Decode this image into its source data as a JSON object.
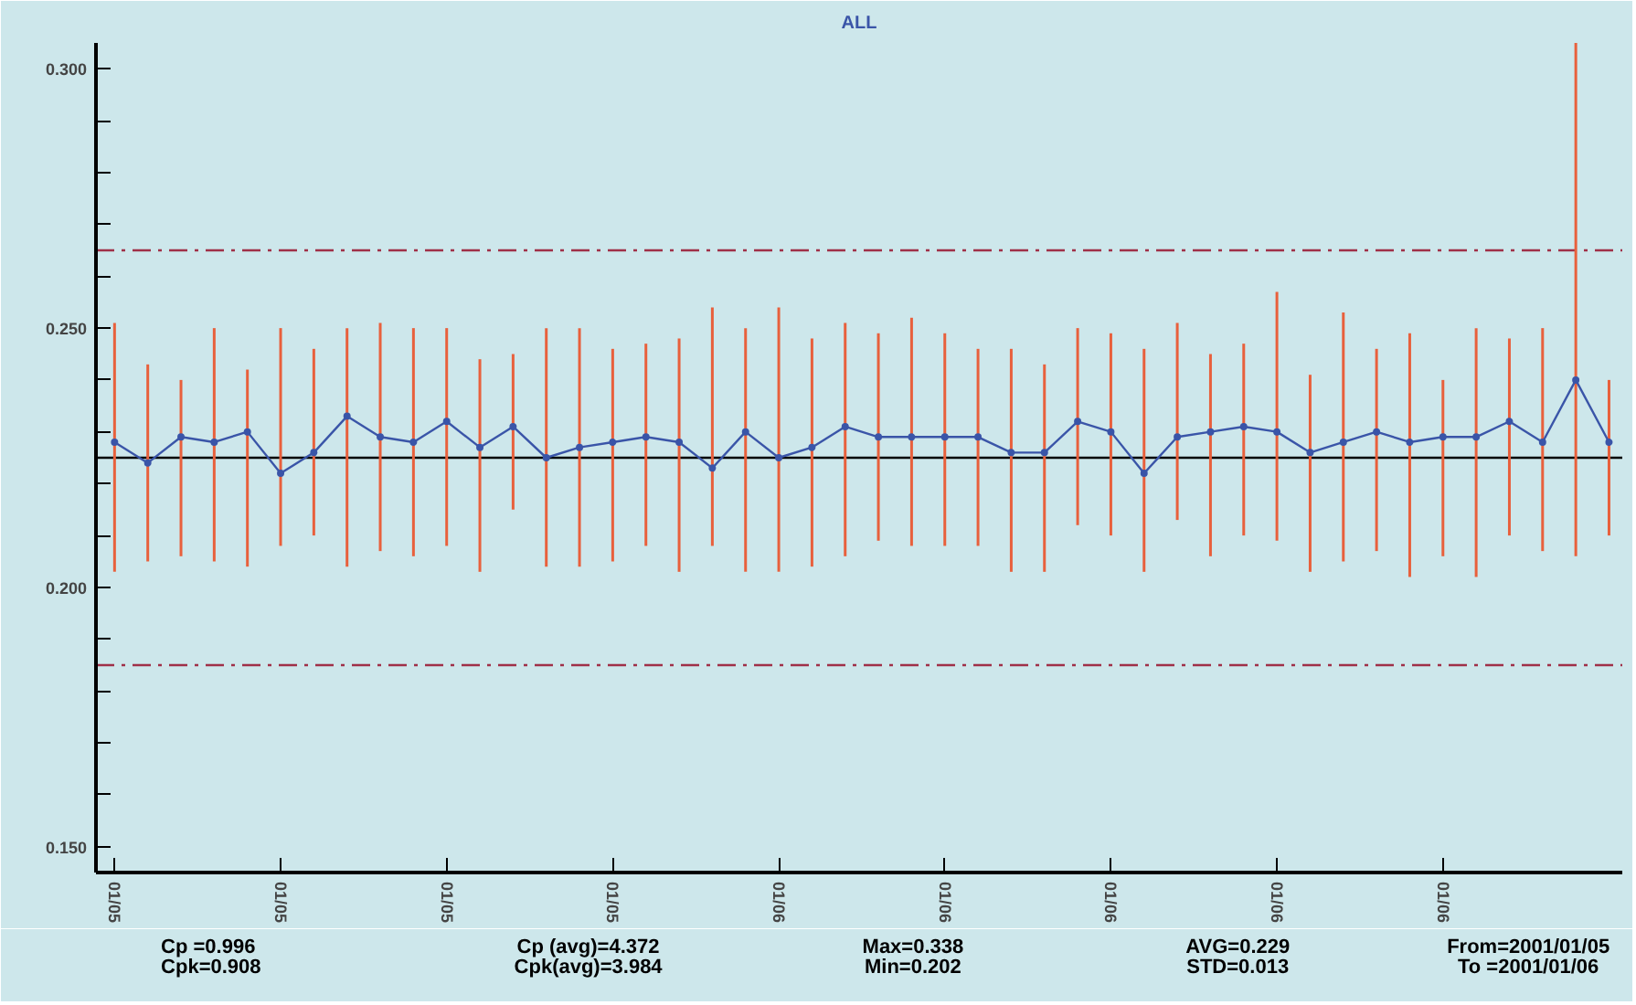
{
  "chart_data": {
    "type": "line",
    "title": "ALL",
    "categories": [
      "01/05",
      null,
      null,
      null,
      null,
      "01/05",
      null,
      null,
      null,
      null,
      "01/05",
      null,
      null,
      null,
      null,
      "01/05",
      null,
      null,
      null,
      null,
      "01/06",
      null,
      null,
      null,
      null,
      "01/06",
      null,
      null,
      null,
      null,
      "01/06",
      null,
      null,
      null,
      null,
      "01/06",
      null,
      null,
      null,
      null,
      "01/06",
      null,
      null,
      null,
      null,
      null
    ],
    "series": [
      {
        "color": "#3a55a8",
        "values": [
          0.228,
          0.224,
          0.229,
          0.228,
          0.23,
          0.222,
          0.226,
          0.233,
          0.229,
          0.228,
          0.232,
          0.227,
          0.231,
          0.225,
          0.227,
          0.228,
          0.229,
          0.228,
          0.223,
          0.23,
          0.225,
          0.227,
          0.231,
          0.229,
          0.229,
          0.229,
          0.229,
          0.226,
          0.226,
          0.232,
          0.23,
          0.222,
          0.229,
          0.23,
          0.231,
          0.23,
          0.226,
          0.228,
          0.23,
          0.228,
          0.229,
          0.229,
          0.232,
          0.228,
          0.24,
          0.228
        ],
        "errors": [
          [
            0.203,
            0.251
          ],
          [
            0.205,
            0.243
          ],
          [
            0.206,
            0.24
          ],
          [
            0.205,
            0.25
          ],
          [
            0.204,
            0.242
          ],
          [
            0.208,
            0.25
          ],
          [
            0.21,
            0.246
          ],
          [
            0.204,
            0.25
          ],
          [
            0.207,
            0.251
          ],
          [
            0.206,
            0.25
          ],
          [
            0.208,
            0.25
          ],
          [
            0.203,
            0.244
          ],
          [
            0.215,
            0.245
          ],
          [
            0.204,
            0.25
          ],
          [
            0.204,
            0.25
          ],
          [
            0.205,
            0.246
          ],
          [
            0.208,
            0.247
          ],
          [
            0.203,
            0.248
          ],
          [
            0.208,
            0.254
          ],
          [
            0.203,
            0.25
          ],
          [
            0.203,
            0.254
          ],
          [
            0.204,
            0.248
          ],
          [
            0.206,
            0.251
          ],
          [
            0.209,
            0.249
          ],
          [
            0.208,
            0.252
          ],
          [
            0.208,
            0.249
          ],
          [
            0.208,
            0.246
          ],
          [
            0.203,
            0.246
          ],
          [
            0.203,
            0.243
          ],
          [
            0.212,
            0.25
          ],
          [
            0.21,
            0.249
          ],
          [
            0.203,
            0.246
          ],
          [
            0.213,
            0.251
          ],
          [
            0.206,
            0.245
          ],
          [
            0.21,
            0.247
          ],
          [
            0.209,
            0.257
          ],
          [
            0.203,
            0.241
          ],
          [
            0.205,
            0.253
          ],
          [
            0.207,
            0.246
          ],
          [
            0.202,
            0.249
          ],
          [
            0.206,
            0.24
          ],
          [
            0.202,
            0.25
          ],
          [
            0.21,
            0.248
          ],
          [
            0.207,
            0.25
          ],
          [
            0.206,
            0.305
          ],
          [
            0.21,
            0.24
          ]
        ]
      }
    ],
    "ylim": [
      0.145,
      0.305
    ],
    "yticks": [
      {
        "value": 0.15,
        "label": "0.150"
      },
      {
        "value": 0.16,
        "label": null
      },
      {
        "value": 0.17,
        "label": null
      },
      {
        "value": 0.18,
        "label": null
      },
      {
        "value": 0.19,
        "label": null
      },
      {
        "value": 0.2,
        "label": "0.200"
      },
      {
        "value": 0.21,
        "label": null
      },
      {
        "value": 0.22,
        "label": null
      },
      {
        "value": 0.23,
        "label": null
      },
      {
        "value": 0.24,
        "label": null
      },
      {
        "value": 0.25,
        "label": "0.250"
      },
      {
        "value": 0.26,
        "label": null
      },
      {
        "value": 0.27,
        "label": null
      },
      {
        "value": 0.28,
        "label": null
      },
      {
        "value": 0.29,
        "label": null
      },
      {
        "value": 0.3,
        "label": "0.300"
      }
    ],
    "ref_lines": [
      {
        "axis": "y",
        "value": 0.265,
        "color": "#a03048",
        "line_style": "dashed"
      },
      {
        "axis": "y",
        "value": 0.225,
        "color": "#000000",
        "line_style": "solid"
      },
      {
        "axis": "y",
        "value": 0.185,
        "color": "#a03048",
        "line_style": "dashed"
      }
    ],
    "annotations": [
      "Cp =0.996\nCpk=0.908",
      "Cp (avg)=4.372\nCpk(avg)=3.984",
      "Max=0.338\nMin=0.202",
      "AVG=0.229\nSTD=0.013",
      "From=2001/01/05\nTo =2001/01/06"
    ],
    "marker": "circle",
    "line_style": "solid",
    "grid": false
  }
}
